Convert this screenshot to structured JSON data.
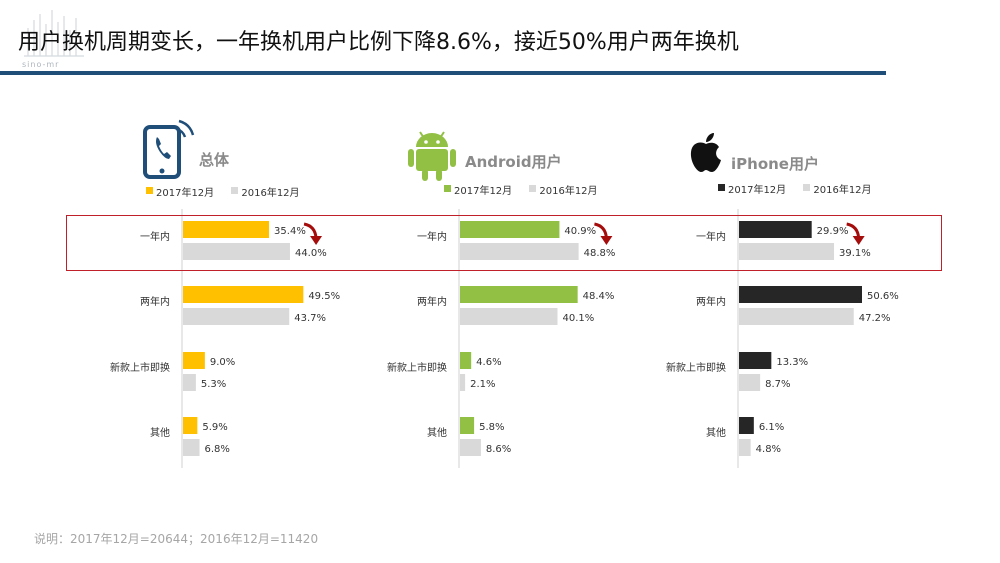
{
  "header": {
    "title": "用户换机周期变长，一年换机用户比例下降8.6%，接近50%用户两年换机",
    "logo_text": "sino-mr"
  },
  "legend": {
    "label_2017": "2017年12月",
    "label_2016": "2016年12月"
  },
  "footnote": "说明：2017年12月=20644；2016年12月=11420",
  "colors": {
    "overall": "#ffc000",
    "android": "#92c044",
    "iphone": "#262626",
    "previous_year": "#d9d9d9",
    "title_rule": "#1f4e79",
    "highlight": "#c0202a"
  },
  "panels": [
    {
      "title": "总体",
      "icon": "phone-icon"
    },
    {
      "title": "Android用户",
      "icon": "android-icon"
    },
    {
      "title": "iPhone用户",
      "icon": "apple-icon"
    }
  ],
  "chart_data": [
    {
      "type": "bar",
      "title": "总体",
      "categories": [
        "一年内",
        "两年内",
        "新款上市即换",
        "其他"
      ],
      "series": [
        {
          "name": "2017年12月",
          "values": [
            35.4,
            49.5,
            9.0,
            5.9
          ],
          "labels": [
            "35.4%",
            "49.5%",
            "9.0%",
            "5.9%"
          ]
        },
        {
          "name": "2016年12月",
          "values": [
            44.0,
            43.7,
            5.3,
            6.8
          ],
          "labels": [
            "44.0%",
            "43.7%",
            "5.3%",
            "6.8%"
          ]
        }
      ],
      "orientation": "horizontal",
      "xlim": [
        0,
        50.6
      ]
    },
    {
      "type": "bar",
      "title": "Android用户",
      "categories": [
        "一年内",
        "两年内",
        "新款上市即换",
        "其他"
      ],
      "series": [
        {
          "name": "2017年12月",
          "values": [
            40.9,
            48.4,
            4.6,
            5.8
          ],
          "labels": [
            "40.9%",
            "48.4%",
            "4.6%",
            "5.8%"
          ]
        },
        {
          "name": "2016年12月",
          "values": [
            48.8,
            40.1,
            2.1,
            8.6
          ],
          "labels": [
            "48.8%",
            "40.1%",
            "2.1%",
            "8.6%"
          ]
        }
      ],
      "orientation": "horizontal",
      "xlim": [
        0,
        50.6
      ]
    },
    {
      "type": "bar",
      "title": "iPhone用户",
      "categories": [
        "一年内",
        "两年内",
        "新款上市即换",
        "其他"
      ],
      "series": [
        {
          "name": "2017年12月",
          "values": [
            29.9,
            50.6,
            13.3,
            6.1
          ],
          "labels": [
            "29.9%",
            "50.6%",
            "13.3%",
            "6.1%"
          ]
        },
        {
          "name": "2016年12月",
          "values": [
            39.1,
            47.2,
            8.7,
            4.8
          ],
          "labels": [
            "39.1%",
            "47.2%",
            "8.7%",
            "4.8%"
          ]
        }
      ],
      "orientation": "horizontal",
      "xlim": [
        0,
        50.6
      ]
    }
  ]
}
